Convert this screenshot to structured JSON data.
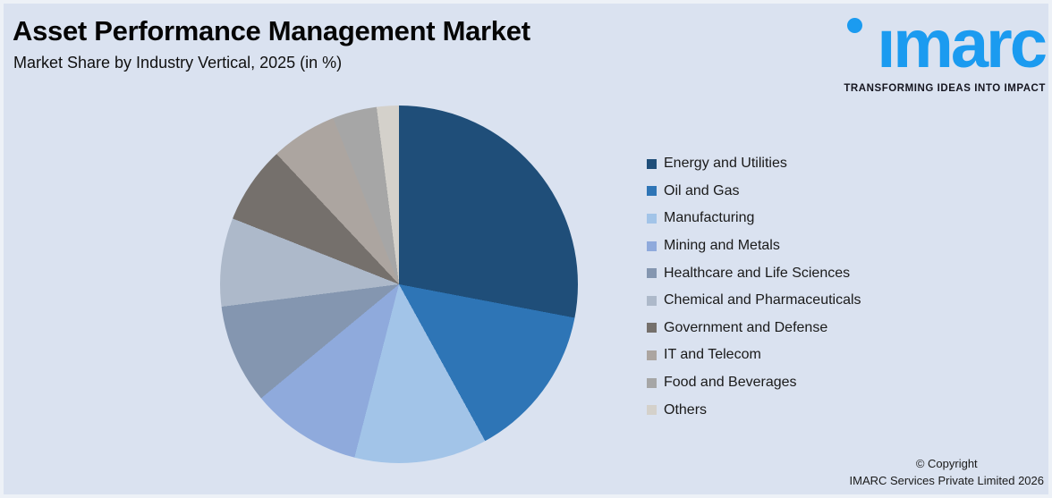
{
  "header": {
    "title": "Asset Performance Management Market",
    "subtitle": "Market Share by Industry Vertical, 2025 (in %)"
  },
  "logo": {
    "wordmark": "imarc",
    "tagline": "TRANSFORMING IDEAS INTO IMPACT",
    "brand_color": "#1B9BF0"
  },
  "footer": {
    "copyright_line1": "© Copyright",
    "copyright_line2": "IMARC Services Private Limited 2026"
  },
  "colors": {
    "background": "#DAE2F0",
    "title_text": "#050505",
    "body_text": "#1A1A1A"
  },
  "chart_data": {
    "type": "pie",
    "title": "Asset Performance Management Market",
    "subtitle": "Market Share by Industry Vertical, 2025 (in %)",
    "unit": "%",
    "start_angle_deg": 0,
    "direction": "clockwise",
    "legend_position": "right",
    "labels": [
      "Energy and Utilities",
      "Oil and Gas",
      "Manufacturing",
      "Mining and Metals",
      "Healthcare and Life Sciences",
      "Chemical and Pharmaceuticals",
      "Government and Defense",
      "IT and Telecom",
      "Food and Beverages",
      "Others"
    ],
    "values": [
      28,
      14,
      12,
      10,
      9,
      8,
      7,
      6,
      4,
      2
    ],
    "colors": [
      "#1F4E79",
      "#2E75B6",
      "#A2C4E8",
      "#8FAADC",
      "#8496B0",
      "#ADB9CA",
      "#75706C",
      "#ACA5A0",
      "#A6A6A6",
      "#D4D1CB"
    ]
  }
}
